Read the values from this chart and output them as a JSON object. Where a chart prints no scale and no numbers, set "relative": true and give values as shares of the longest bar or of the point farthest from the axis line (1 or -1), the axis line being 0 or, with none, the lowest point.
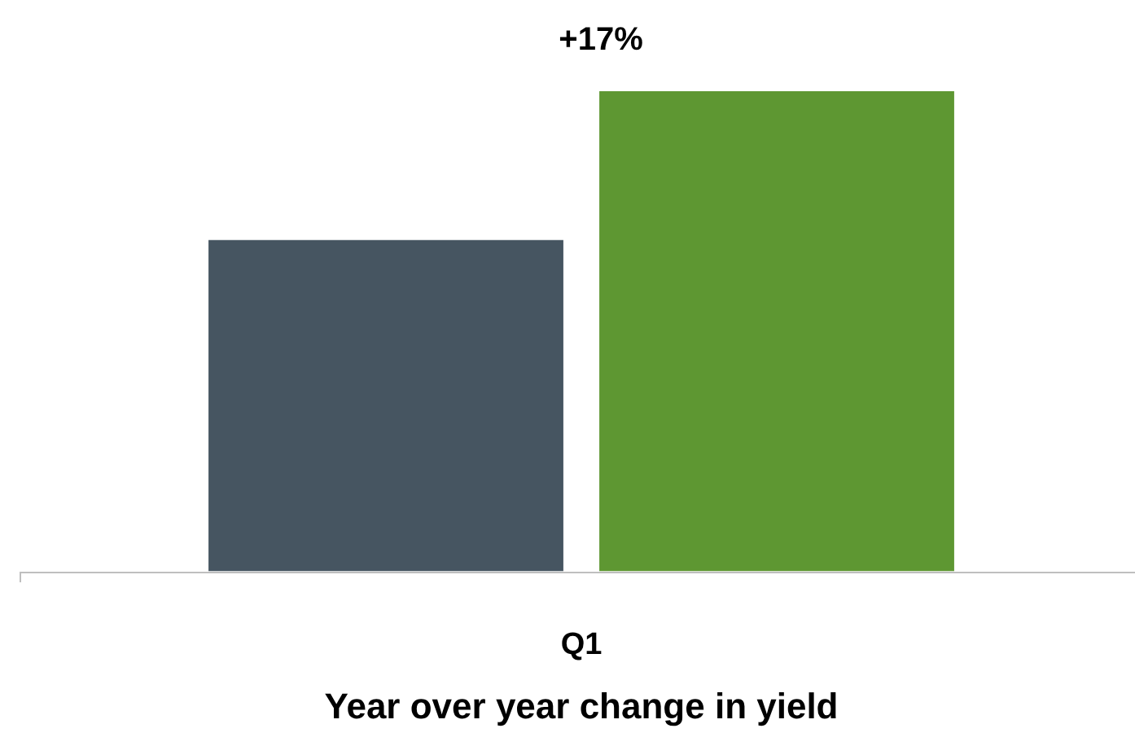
{
  "chart_data": {
    "type": "bar",
    "relative": true,
    "title": "Year over year change in yield",
    "xlabel": "Q1",
    "categories": [
      null,
      null
    ],
    "values": [
      0.69,
      1
    ],
    "colors": [
      "#465561",
      "#5e9732"
    ],
    "annotations": [
      "+17%"
    ]
  }
}
